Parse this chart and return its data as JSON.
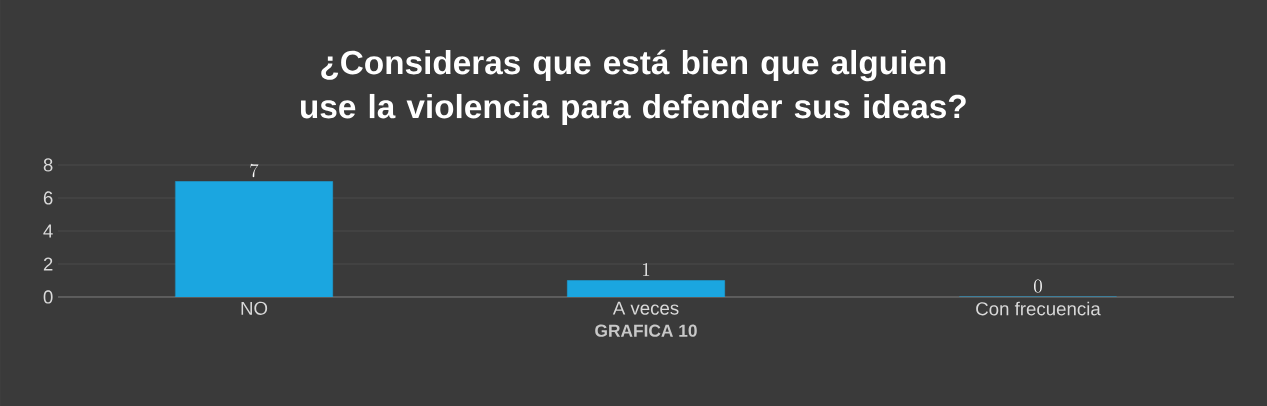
{
  "chart_data": {
    "type": "bar",
    "title": "¿Consideras que está bien que alguien use la violencia para defender sus ideas?",
    "xlabel": "GRAFICA 10",
    "categories": [
      "NO",
      "A veces",
      "Con frecuencia"
    ],
    "values": [
      7,
      1,
      0
    ],
    "color": "#1ba6e0",
    "ylim": [
      0,
      8
    ],
    "yticks": [
      0,
      2,
      4,
      6,
      8
    ],
    "grid": "y",
    "data_labels": true
  }
}
